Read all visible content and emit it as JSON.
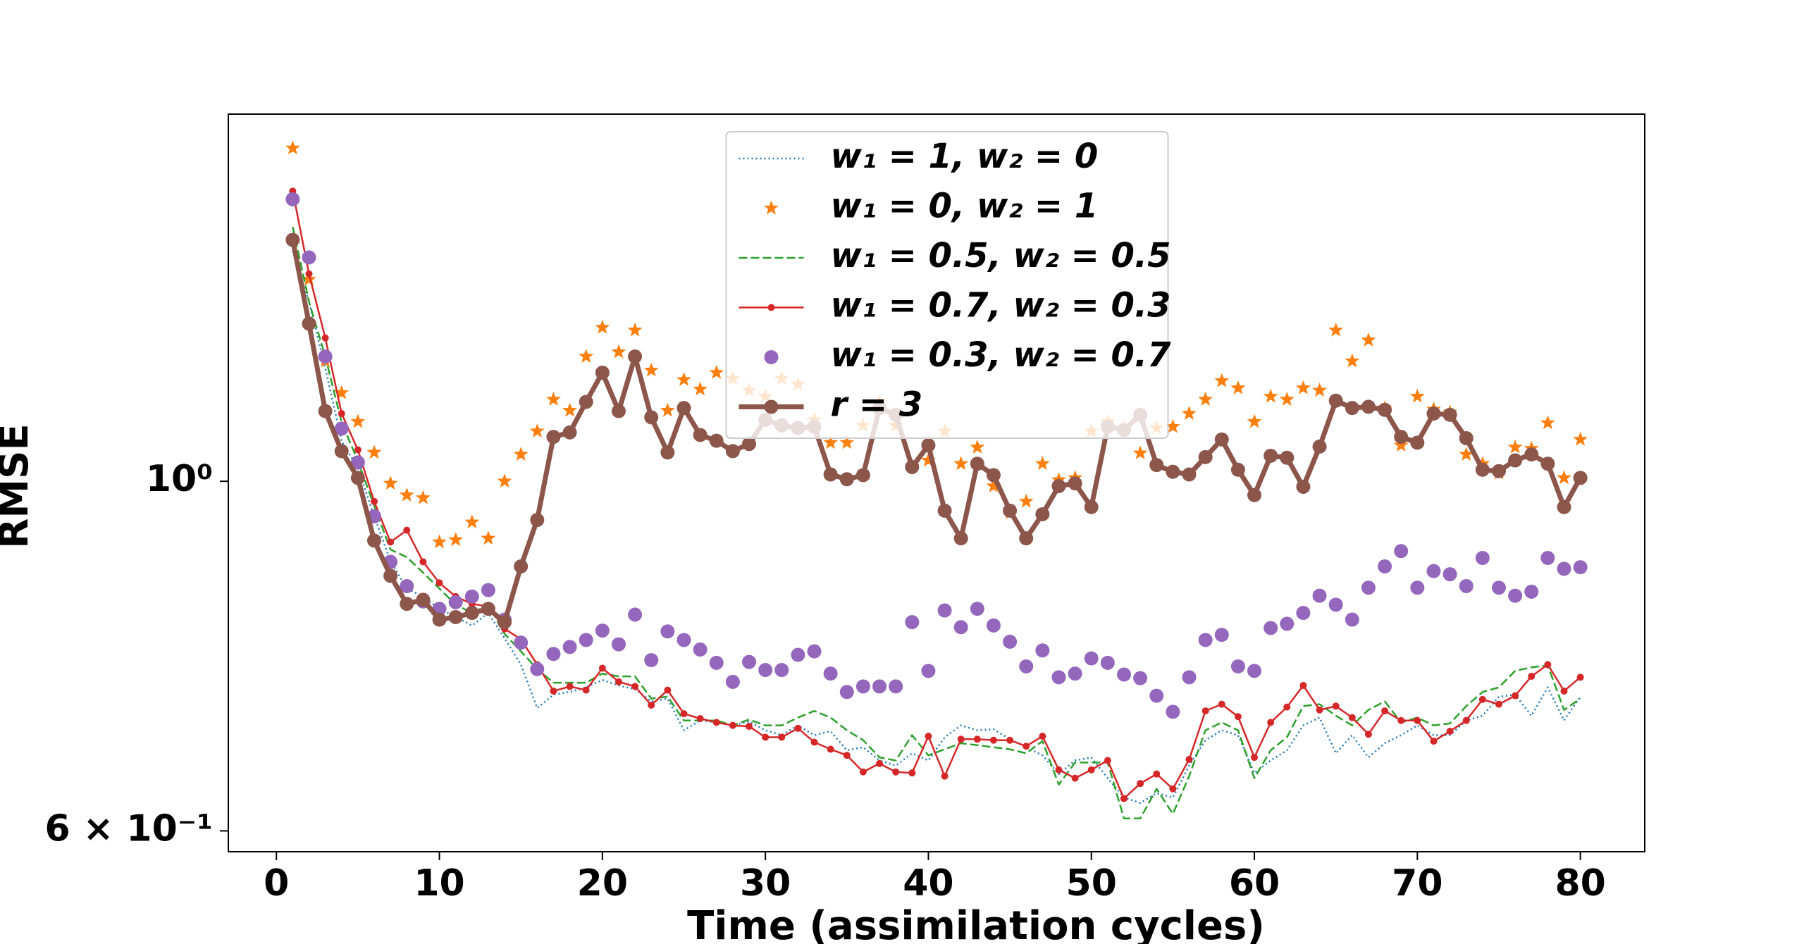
{
  "chart_data": {
    "type": "line",
    "xlabel": "Time (assimilation cycles)",
    "ylabel": "RMSE",
    "x": [
      1,
      2,
      3,
      4,
      5,
      6,
      7,
      8,
      9,
      10,
      11,
      12,
      13,
      14,
      15,
      16,
      17,
      18,
      19,
      20,
      21,
      22,
      23,
      24,
      25,
      26,
      27,
      28,
      29,
      30,
      31,
      32,
      33,
      34,
      35,
      36,
      37,
      38,
      39,
      40,
      41,
      42,
      43,
      44,
      45,
      46,
      47,
      48,
      49,
      50,
      51,
      52,
      53,
      54,
      55,
      56,
      57,
      58,
      59,
      60,
      61,
      62,
      63,
      64,
      65,
      66,
      67,
      68,
      69,
      70,
      71,
      72,
      73,
      74,
      75,
      76,
      77,
      78,
      79,
      80
    ],
    "xlim": [
      -2.95,
      83.95
    ],
    "xticks": [
      0,
      10,
      20,
      30,
      40,
      50,
      60,
      70,
      80
    ],
    "yscale": "log",
    "ylim": [
      0.582,
      1.71
    ],
    "yticks": [
      {
        "value": 1,
        "label": "10⁰"
      },
      {
        "value": 0.6,
        "label": "6 × 10⁻¹"
      }
    ],
    "legend": "upper center",
    "series": [
      {
        "name": "w₁ = 1, w₂ = 0",
        "color": "#1f77b4",
        "linestyle": "dotted",
        "marker": "none",
        "values": [
          1.4,
          1.3,
          1.18,
          1.06,
          1.02,
          0.95,
          0.89,
          0.855,
          0.845,
          0.83,
          0.82,
          0.81,
          0.825,
          0.795,
          0.765,
          0.718,
          0.732,
          0.735,
          0.74,
          0.748,
          0.742,
          0.738,
          0.725,
          0.728,
          0.695,
          0.705,
          0.703,
          0.7,
          0.704,
          0.695,
          0.69,
          0.7,
          0.69,
          0.694,
          0.675,
          0.678,
          0.665,
          0.66,
          0.672,
          0.665,
          0.688,
          0.7,
          0.695,
          0.696,
          0.686,
          0.678,
          0.67,
          0.652,
          0.665,
          0.668,
          0.648,
          0.63,
          0.625,
          0.634,
          0.63,
          0.66,
          0.685,
          0.695,
          0.69,
          0.653,
          0.665,
          0.675,
          0.7,
          0.708,
          0.672,
          0.69,
          0.668,
          0.682,
          0.69,
          0.7,
          0.69,
          0.69,
          0.705,
          0.71,
          0.73,
          0.732,
          0.71,
          0.74,
          0.705,
          0.73
        ]
      },
      {
        "name": "w₁ = 0, w₂ = 1",
        "color": "#ff7f0e",
        "linestyle": "none",
        "marker": "star",
        "values": [
          1.627,
          1.343,
          1.192,
          1.138,
          1.091,
          1.043,
          0.997,
          0.98,
          0.976,
          0.915,
          0.918,
          0.942,
          0.92,
          1.0,
          1.04,
          1.076,
          1.127,
          1.109,
          1.2,
          1.252,
          1.208,
          1.247,
          1.176,
          1.109,
          1.16,
          1.144,
          1.172,
          1.162,
          1.142,
          1.132,
          1.162,
          1.152,
          1.094,
          1.058,
          1.058,
          1.085,
          1.123,
          1.085,
          1.022,
          1.031,
          1.076,
          1.026,
          1.051,
          0.993,
          0.955,
          0.971,
          1.026,
          1.002,
          1.005,
          1.076,
          1.091,
          1.081,
          1.042,
          1.081,
          1.083,
          1.104,
          1.127,
          1.158,
          1.146,
          1.091,
          1.132,
          1.127,
          1.146,
          1.142,
          1.247,
          1.192,
          1.229,
          1.113,
          1.054,
          1.132,
          1.111,
          1.106,
          1.04,
          1.026,
          1.012,
          1.051,
          1.049,
          1.089,
          1.005,
          1.063
        ]
      },
      {
        "name": "w₁ = 0.5, w₂ = 0.5",
        "color": "#2ca02c",
        "linestyle": "dashed",
        "marker": "none",
        "values": [
          1.45,
          1.3,
          1.2,
          1.09,
          1.03,
          0.965,
          0.905,
          0.895,
          0.875,
          0.855,
          0.835,
          0.825,
          0.835,
          0.8,
          0.78,
          0.76,
          0.745,
          0.745,
          0.745,
          0.755,
          0.752,
          0.752,
          0.728,
          0.73,
          0.705,
          0.705,
          0.705,
          0.7,
          0.706,
          0.7,
          0.7,
          0.708,
          0.715,
          0.708,
          0.695,
          0.685,
          0.668,
          0.665,
          0.69,
          0.67,
          0.676,
          0.682,
          0.68,
          0.678,
          0.676,
          0.672,
          0.684,
          0.642,
          0.663,
          0.663,
          0.663,
          0.611,
          0.611,
          0.638,
          0.615,
          0.65,
          0.695,
          0.703,
          0.695,
          0.648,
          0.675,
          0.688,
          0.72,
          0.722,
          0.71,
          0.7,
          0.716,
          0.725,
          0.703,
          0.708,
          0.7,
          0.702,
          0.72,
          0.735,
          0.74,
          0.758,
          0.762,
          0.764,
          0.716,
          0.728
        ]
      },
      {
        "name": "w₁ = 0.7, w₂ = 0.3",
        "color": "#d62728",
        "linestyle": "solid",
        "marker": "small-dot",
        "values": [
          1.528,
          1.354,
          1.233,
          1.104,
          1.047,
          0.971,
          0.915,
          0.931,
          0.889,
          0.862,
          0.845,
          0.836,
          0.833,
          0.806,
          0.794,
          0.765,
          0.736,
          0.741,
          0.737,
          0.761,
          0.746,
          0.741,
          0.721,
          0.737,
          0.712,
          0.707,
          0.703,
          0.7,
          0.699,
          0.688,
          0.688,
          0.697,
          0.683,
          0.676,
          0.67,
          0.654,
          0.662,
          0.654,
          0.653,
          0.689,
          0.65,
          0.686,
          0.686,
          0.685,
          0.685,
          0.679,
          0.689,
          0.656,
          0.648,
          0.656,
          0.665,
          0.629,
          0.643,
          0.652,
          0.638,
          0.666,
          0.715,
          0.722,
          0.709,
          0.668,
          0.703,
          0.719,
          0.742,
          0.716,
          0.72,
          0.708,
          0.691,
          0.715,
          0.705,
          0.705,
          0.684,
          0.694,
          0.705,
          0.727,
          0.722,
          0.731,
          0.752,
          0.765,
          0.736,
          0.751
        ]
      },
      {
        "name": "w₁ = 0.3, w₂ = 0.7",
        "color": "#9467bd",
        "linestyle": "none",
        "marker": "dot",
        "values": [
          1.51,
          1.387,
          1.2,
          1.08,
          1.028,
          0.95,
          0.889,
          0.858,
          0.839,
          0.83,
          0.838,
          0.845,
          0.853,
          0.817,
          0.79,
          0.76,
          0.777,
          0.785,
          0.793,
          0.804,
          0.788,
          0.823,
          0.77,
          0.803,
          0.793,
          0.782,
          0.767,
          0.746,
          0.768,
          0.759,
          0.759,
          0.776,
          0.78,
          0.755,
          0.735,
          0.741,
          0.741,
          0.741,
          0.814,
          0.758,
          0.828,
          0.808,
          0.83,
          0.81,
          0.791,
          0.763,
          0.781,
          0.751,
          0.755,
          0.772,
          0.767,
          0.754,
          0.75,
          0.731,
          0.714,
          0.751,
          0.793,
          0.799,
          0.763,
          0.758,
          0.807,
          0.812,
          0.825,
          0.846,
          0.835,
          0.817,
          0.856,
          0.883,
          0.903,
          0.856,
          0.877,
          0.873,
          0.858,
          0.894,
          0.856,
          0.846,
          0.851,
          0.894,
          0.88,
          0.882
        ]
      },
      {
        "name": "r = 3",
        "color": "#8c564b",
        "linestyle": "thick",
        "marker": "dot",
        "values": [
          1.423,
          1.259,
          1.108,
          1.045,
          1.005,
          0.917,
          0.871,
          0.836,
          0.841,
          0.817,
          0.82,
          0.825,
          0.83,
          0.814,
          0.883,
          0.945,
          1.067,
          1.074,
          1.123,
          1.172,
          1.108,
          1.2,
          1.098,
          1.043,
          1.113,
          1.07,
          1.061,
          1.045,
          1.056,
          1.094,
          1.085,
          1.081,
          1.083,
          1.01,
          1.003,
          1.009,
          1.113,
          1.102,
          1.021,
          1.054,
          0.958,
          0.92,
          1.026,
          1.009,
          0.958,
          0.92,
          0.953,
          0.993,
          0.997,
          0.963,
          1.083,
          1.078,
          1.102,
          1.024,
          1.014,
          1.01,
          1.036,
          1.063,
          1.017,
          0.98,
          1.038,
          1.035,
          0.992,
          1.052,
          1.125,
          1.113,
          1.115,
          1.11,
          1.067,
          1.058,
          1.104,
          1.102,
          1.065,
          1.017,
          1.015,
          1.031,
          1.04,
          1.026,
          0.963,
          1.005
        ]
      }
    ]
  }
}
